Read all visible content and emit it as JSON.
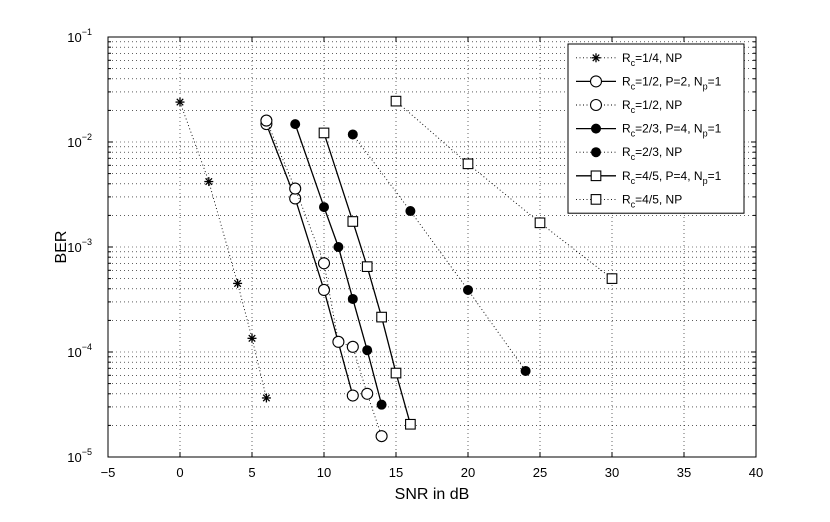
{
  "chart_data": {
    "type": "line",
    "title": "",
    "xlabel": "SNR in dB",
    "ylabel": "BER",
    "xlim": [
      -5,
      40
    ],
    "ylim": [
      1e-05,
      0.1
    ],
    "yscale": "log",
    "grid": true,
    "legend_position": "top-right",
    "x_ticks": [
      -5,
      0,
      5,
      10,
      15,
      20,
      25,
      30,
      35,
      40
    ],
    "x_tick_labels": [
      "−5",
      "0",
      "5",
      "10",
      "15",
      "20",
      "25",
      "30",
      "35",
      "40"
    ],
    "y_tick_values": [
      1e-05,
      0.0001,
      0.001,
      0.01,
      0.1
    ],
    "y_tick_exponents": [
      "−5",
      "−4",
      "−3",
      "−2",
      "−1"
    ],
    "y_tick_base": "10",
    "series": [
      {
        "name": "Rc=1/4, NP",
        "legend": {
          "main": "R",
          "sub": "c",
          "rest": "=1/4, NP"
        },
        "line": "dotted",
        "marker": "star",
        "x": [
          0,
          2,
          4,
          5,
          6
        ],
        "y": [
          0.024,
          0.0042,
          0.00045,
          0.000135,
          3.65e-05
        ]
      },
      {
        "name": "Rc=1/2, P=2, Np=1",
        "legend": {
          "main": "R",
          "sub": "c",
          "rest": "=1/2, P=2, N",
          "sub2": "p",
          "rest2": "=1"
        },
        "line": "solid",
        "marker": "circle-open",
        "x": [
          6,
          8,
          10,
          12
        ],
        "y": [
          0.0148,
          0.0029,
          0.00039,
          3.85e-05
        ]
      },
      {
        "name": "Rc=1/2, NP",
        "legend": {
          "main": "R",
          "sub": "c",
          "rest": "=1/2, NP"
        },
        "line": "dotted",
        "marker": "circle-open",
        "x": [
          6,
          8,
          10,
          11,
          12,
          13,
          14
        ],
        "y": [
          0.016,
          0.0036,
          0.0007,
          0.000125,
          0.000112,
          4e-05,
          1.58e-05
        ]
      },
      {
        "name": "Rc=2/3, P=4, Np=1",
        "legend": {
          "main": "R",
          "sub": "c",
          "rest": "=2/3, P=4, N",
          "sub2": "p",
          "rest2": "=1"
        },
        "line": "solid",
        "marker": "circle-filled",
        "x": [
          8,
          10,
          11,
          12,
          13,
          14
        ],
        "y": [
          0.0148,
          0.0024,
          0.001,
          0.00032,
          0.000104,
          3.15e-05
        ]
      },
      {
        "name": "Rc=2/3, NP",
        "legend": {
          "main": "R",
          "sub": "c",
          "rest": "=2/3, NP"
        },
        "line": "dotted",
        "marker": "circle-filled",
        "x": [
          12,
          16,
          20,
          24
        ],
        "y": [
          0.0118,
          0.0022,
          0.00039,
          6.6e-05
        ]
      },
      {
        "name": "Rc=4/5, P=4, Np=1",
        "legend": {
          "main": "R",
          "sub": "c",
          "rest": "=4/5, P=4, N",
          "sub2": "p",
          "rest2": "=1"
        },
        "line": "solid",
        "marker": "square-open",
        "x": [
          10,
          12,
          13,
          14,
          15,
          16
        ],
        "y": [
          0.0122,
          0.00175,
          0.00065,
          0.000215,
          6.3e-05,
          2.05e-05
        ]
      },
      {
        "name": "Rc=4/5, NP",
        "legend": {
          "main": "R",
          "sub": "c",
          "rest": "=4/5, NP"
        },
        "line": "dotted",
        "marker": "square-open",
        "x": [
          15,
          20,
          25,
          30
        ],
        "y": [
          0.0245,
          0.0062,
          0.0017,
          0.0005
        ]
      }
    ]
  }
}
